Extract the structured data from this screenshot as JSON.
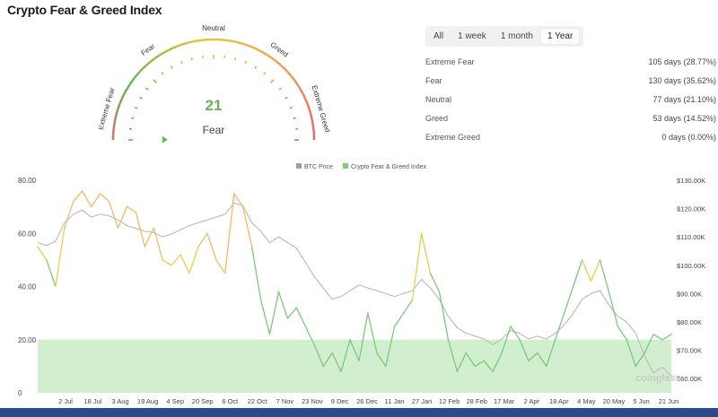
{
  "page": {
    "title": "Crypto Fear & Greed Index"
  },
  "gauge": {
    "value": 21,
    "classification": "Fear",
    "max": 100,
    "zone_labels": [
      "Extreme Fear",
      "Fear",
      "Neutral",
      "Greed",
      "Extreme Greed"
    ],
    "colors": {
      "extreme_fear": "#e2686a",
      "fear": "#5eb85a",
      "neutral": "#e4c43a",
      "greed": "#f2a25a",
      "extreme_greed": "#e2686a",
      "value_text": "#67b45a"
    }
  },
  "range_tabs": {
    "items": [
      "All",
      "1 week",
      "1 month",
      "1 Year"
    ],
    "selected": "1 Year"
  },
  "stats": [
    {
      "label": "Extreme Fear",
      "value": "105 days (28.77%)"
    },
    {
      "label": "Fear",
      "value": "130 days (35.62%)"
    },
    {
      "label": "Neutral",
      "value": "77 days (21.10%)"
    },
    {
      "label": "Greed",
      "value": "53 days (14.52%)"
    },
    {
      "label": "Extreme Greed",
      "value": "0 days (0.00%)"
    }
  ],
  "watermark": "coinglass",
  "chart_data": {
    "type": "line",
    "legend": [
      {
        "name": "BTC Price",
        "color": "#9e9e9e"
      },
      {
        "name": "Crypto Fear & Greed Index",
        "color": "#7ecb7c"
      }
    ],
    "legend_position": "top-center",
    "x_ticks": [
      "2 Jul",
      "18 Jul",
      "3 Aug",
      "19 Aug",
      "4 Sep",
      "20 Sep",
      "6 Oct",
      "22 Oct",
      "7 Nov",
      "23 Nov",
      "9 Dec",
      "26 Dec",
      "11 Jan",
      "27 Jan",
      "12 Feb",
      "28 Feb",
      "17 Mar",
      "2 Apr",
      "18 Apr",
      "4 May",
      "20 May",
      "5 Jun",
      "21 Jun"
    ],
    "y_left_ticks": [
      "80.00",
      "60.00",
      "40.00",
      "20.00",
      "0"
    ],
    "y_left_ylim": [
      0,
      80
    ],
    "y_right_ticks": [
      "$130.00K",
      "$120.00K",
      "$110.00K",
      "$100.00K",
      "$90.00K",
      "$80.00K",
      "$70.00K",
      "$60.00K"
    ],
    "y_right_ylim": [
      55000,
      130000
    ],
    "shaded_band": {
      "from": 0,
      "to": 20,
      "color": "#c9ecc6"
    },
    "grid": false,
    "series": [
      {
        "name": "Crypto Fear & Greed Index",
        "axis": "left",
        "values": [
          55,
          50,
          40,
          62,
          72,
          76,
          70,
          75,
          72,
          62,
          70,
          68,
          55,
          62,
          50,
          48,
          52,
          45,
          55,
          60,
          50,
          45,
          75,
          70,
          55,
          35,
          22,
          38,
          28,
          32,
          25,
          18,
          10,
          15,
          8,
          20,
          12,
          30,
          15,
          10,
          25,
          30,
          35,
          60,
          45,
          38,
          20,
          8,
          15,
          10,
          12,
          8,
          15,
          25,
          20,
          12,
          15,
          10,
          20,
          30,
          40,
          50,
          42,
          50,
          38,
          25,
          20,
          10,
          15,
          22,
          20,
          22
        ]
      },
      {
        "name": "BTC Price",
        "axis": "right",
        "values": [
          108000,
          107000,
          108500,
          115000,
          118000,
          119500,
          117000,
          118000,
          117500,
          116000,
          114000,
          113000,
          112000,
          111500,
          110000,
          111000,
          112500,
          114000,
          115000,
          116000,
          117000,
          118000,
          122000,
          121000,
          115000,
          112000,
          108000,
          110000,
          108000,
          106000,
          101000,
          96000,
          92000,
          88000,
          89000,
          91000,
          93000,
          92000,
          91000,
          90000,
          89000,
          90000,
          91000,
          95000,
          92000,
          88000,
          82000,
          78000,
          76000,
          75000,
          74000,
          72000,
          74000,
          77000,
          76000,
          74000,
          75000,
          74000,
          76000,
          79000,
          83000,
          88000,
          90000,
          91000,
          86000,
          82000,
          80000,
          76000,
          68000,
          62000,
          64000,
          61000
        ]
      }
    ]
  }
}
